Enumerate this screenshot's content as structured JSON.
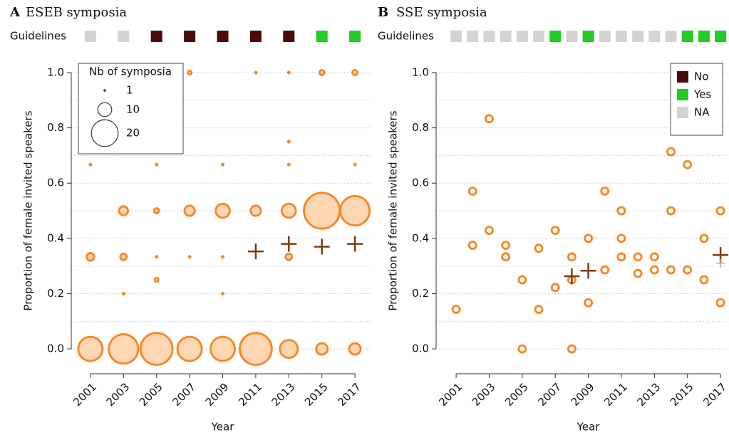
{
  "chart_data": [
    {
      "type": "bubble",
      "panel": "A",
      "title": "ESEB symposia",
      "guidelines": {
        "label": "Guidelines",
        "values": [
          "NA",
          "NA",
          "No",
          "No",
          "No",
          "No",
          "No",
          "Yes",
          "Yes"
        ]
      },
      "xlabel": "Year",
      "ylabel": "Proportion of female invited speakers",
      "xlim": [
        1999.84,
        2018.03
      ],
      "ylim": [
        -0.09,
        1.036
      ],
      "xticks": [
        2001,
        2003,
        2005,
        2007,
        2009,
        2011,
        2013,
        2015,
        2017
      ],
      "yticks": [
        {
          "value": 0,
          "label": "0.0"
        },
        {
          "value": 0.2,
          "label": "0.2"
        },
        {
          "value": 0.4,
          "label": "0.4"
        },
        {
          "value": 0.6,
          "label": "0.6"
        },
        {
          "value": 0.8,
          "label": "0.8"
        },
        {
          "value": 1,
          "label": "1.0"
        }
      ],
      "ygrid": [
        0,
        0.1,
        0.2,
        0.3,
        0.4,
        0.5,
        0.6,
        0.7,
        0.8,
        0.9,
        1
      ],
      "color": "#f58a2a",
      "fill": "#fdd7b4",
      "points": {
        "x": [
          2001,
          2001,
          2001,
          2003,
          2003,
          2003,
          2003,
          2005,
          2005,
          2005,
          2005,
          2005,
          2007,
          2007,
          2007,
          2007,
          2009,
          2009,
          2009,
          2009,
          2009,
          2011,
          2011,
          2011,
          2013,
          2013,
          2013,
          2013,
          2013,
          2013,
          2015,
          2015,
          2015,
          2017,
          2017,
          2017,
          2017
        ],
        "y": [
          0.667,
          0.333,
          0,
          0.5,
          0.333,
          0.2,
          0,
          0.667,
          0.5,
          0.333,
          0.25,
          0,
          1,
          0.5,
          0.333,
          0,
          0.667,
          0.5,
          0.333,
          0.2,
          0,
          1,
          0.5,
          0,
          1,
          0.75,
          0.667,
          0.5,
          0.333,
          0,
          1,
          0.5,
          0,
          1,
          0.667,
          0.5,
          0
        ],
        "sizes": [
          1,
          5,
          18,
          6,
          4,
          1,
          22,
          1,
          3,
          1,
          2,
          24,
          2,
          7,
          1,
          18,
          1,
          10,
          1,
          1,
          18,
          1,
          7,
          24,
          1,
          1,
          1,
          10,
          4,
          13,
          3,
          27,
          8,
          3,
          1,
          22,
          8
        ]
      },
      "means": [
        {
          "x": [
            2011,
            2013,
            2015,
            2017
          ],
          "y": [
            0.353,
            0.38,
            0.37,
            0.38
          ],
          "color": "#7a3b12"
        }
      ],
      "size_legend": {
        "title": "Nb of symposia",
        "values": [
          1,
          10,
          20
        ]
      }
    },
    {
      "type": "scatter",
      "panel": "B",
      "title": "SSE symposia",
      "guidelines": {
        "label": "Guidelines",
        "values": [
          "NA",
          "NA",
          "NA",
          "NA",
          "NA",
          "NA",
          "Yes",
          "NA",
          "Yes",
          "NA",
          "NA",
          "NA",
          "NA",
          "NA",
          "Yes",
          "Yes",
          "Yes"
        ]
      },
      "xlabel": "Year",
      "ylabel": "Proportion of female invited speakers",
      "xlim": [
        1999.79,
        2017.47
      ],
      "ylim": [
        -0.09,
        1.036
      ],
      "xticks": [
        2001,
        2003,
        2005,
        2007,
        2009,
        2011,
        2013,
        2015,
        2017
      ],
      "yticks": [
        {
          "value": 0,
          "label": "0.0"
        },
        {
          "value": 0.2,
          "label": "0.2"
        },
        {
          "value": 0.4,
          "label": "0.4"
        },
        {
          "value": 0.6,
          "label": "0.6"
        },
        {
          "value": 0.8,
          "label": "0.8"
        },
        {
          "value": 1,
          "label": "1.0"
        }
      ],
      "ygrid": [
        0,
        0.1,
        0.2,
        0.3,
        0.4,
        0.5,
        0.6,
        0.7,
        0.8,
        0.9,
        1
      ],
      "color": "#f58a2a",
      "fill": "#ffffff",
      "points": {
        "x": [
          2001,
          2002,
          2002,
          2003,
          2003,
          2004,
          2004,
          2005,
          2005,
          2006,
          2006,
          2007,
          2007,
          2008,
          2008,
          2008,
          2009,
          2009,
          2010,
          2010,
          2011,
          2011,
          2011,
          2012,
          2012,
          2013,
          2013,
          2014,
          2014,
          2014,
          2015,
          2015,
          2016,
          2016,
          2017,
          2017
        ],
        "y": [
          0.143,
          0.571,
          0.375,
          0.833,
          0.429,
          0.375,
          0.333,
          0.25,
          0,
          0.364,
          0.143,
          0.429,
          0.222,
          0.333,
          0.25,
          0,
          0.4,
          0.167,
          0.571,
          0.286,
          0.5,
          0.4,
          0.333,
          0.333,
          0.273,
          0.333,
          0.286,
          0.714,
          0.5,
          0.286,
          0.667,
          0.286,
          0.4,
          0.25,
          0.5,
          0.167
        ]
      },
      "means": [
        {
          "x": [
            2008,
            2009,
            2017
          ],
          "y": [
            0.263,
            0.283,
            0.34
          ],
          "color": "#7a3b12"
        },
        {
          "x": [
            2017
          ],
          "y": [
            0.31
          ],
          "color": "#d9a37c"
        }
      ],
      "legend": [
        {
          "name": "No",
          "color": "#4d0a0a"
        },
        {
          "name": "Yes",
          "color": "#22cc22"
        },
        {
          "name": "NA",
          "color": "#d3d3d3"
        }
      ]
    }
  ]
}
